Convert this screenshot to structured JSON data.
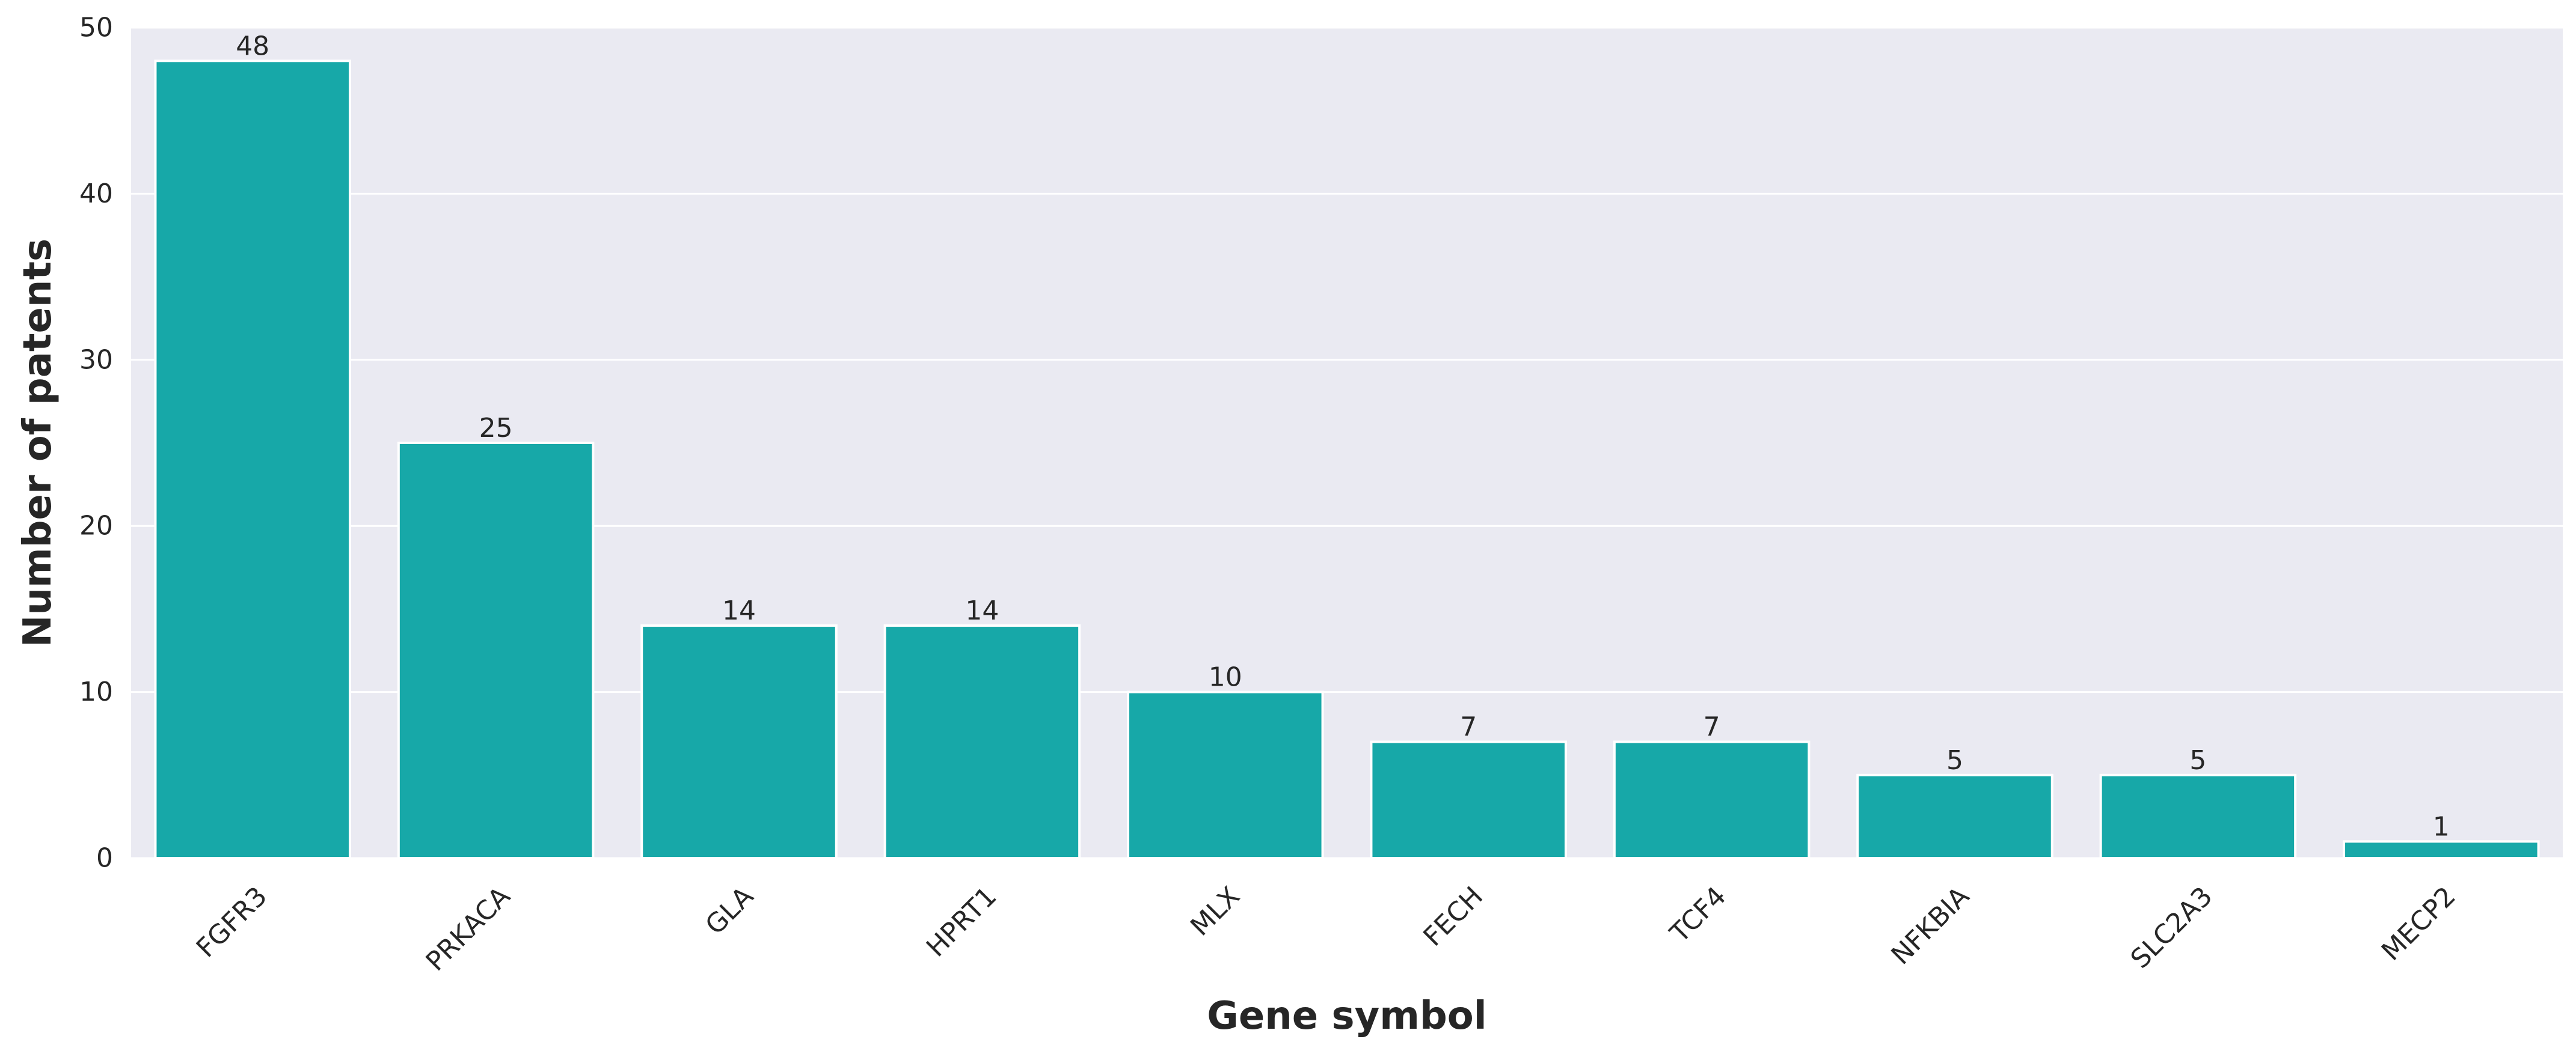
{
  "chart_data": {
    "type": "bar",
    "title": "",
    "xlabel": "Gene symbol",
    "ylabel": "Number of patents",
    "categories": [
      "FGFR3",
      "PRKACA",
      "GLA",
      "HPRT1",
      "MLX",
      "FECH",
      "TCF4",
      "NFKBIA",
      "SLC2A3",
      "MECP2"
    ],
    "values": [
      48,
      25,
      14,
      14,
      10,
      7,
      7,
      5,
      5,
      1
    ],
    "data_labels": [
      "48",
      "25",
      "14",
      "14",
      "10",
      "7",
      "7",
      "5",
      "5",
      "1"
    ],
    "ylim": [
      0,
      50
    ],
    "yticks": [
      0,
      10,
      20,
      30,
      40,
      50
    ],
    "ytick_labels": [
      "0",
      "10",
      "20",
      "30",
      "40",
      "50"
    ],
    "grid": true,
    "legend": "none",
    "colors": {
      "bar": "#17a8a8",
      "plot_background": "#eaeaf2",
      "grid": "#ffffff",
      "text": "#262626"
    }
  }
}
